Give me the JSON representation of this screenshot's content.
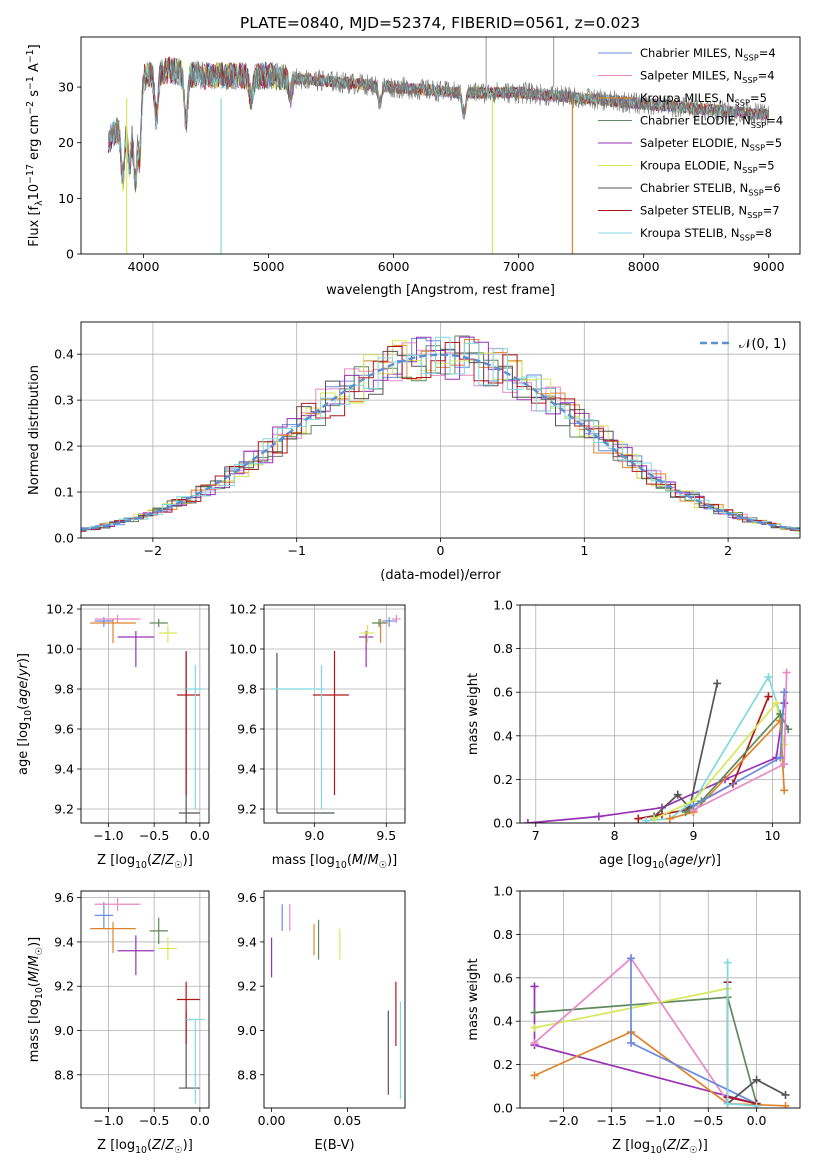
{
  "figure_title": "PLATE=0840, MJD=52374, FIBERID=0561, z=0.023",
  "colors": {
    "Chabrier MILES": "#6a8be0",
    "Salpeter MILES": "#e889c7",
    "Kroupa MILES": "#e0842b",
    "Chabrier ELODIE": "#5f8a5f",
    "Salpeter ELODIE": "#9a32b8",
    "Kroupa ELODIE": "#d6e85a",
    "Chabrier STELIB": "#555555",
    "Salpeter STELIB": "#b01818",
    "Kroupa STELIB": "#7fd9e0"
  },
  "chart_data": [
    {
      "type": "line",
      "xlabel": "wavelength [Angstrom, rest frame]",
      "ylabel": "Flux [f_λ10^-17 erg cm^-2 s^-1 A^-1]",
      "xlim": [
        3500,
        9250
      ],
      "ylim": [
        0,
        39
      ],
      "xticks": [
        4000,
        5000,
        6000,
        7000,
        8000,
        9000
      ],
      "yticks": [
        0,
        10,
        20,
        30
      ],
      "grid": false,
      "legend_position": "top-right",
      "series": [
        {
          "name": "Chabrier MILES, N_SSP=4"
        },
        {
          "name": "Salpeter MILES, N_SSP=4"
        },
        {
          "name": "Kroupa MILES, N_SSP=5"
        },
        {
          "name": "Chabrier ELODIE, N_SSP=4"
        },
        {
          "name": "Salpeter ELODIE, N_SSP=5"
        },
        {
          "name": "Kroupa ELODIE, N_SSP=5"
        },
        {
          "name": "Chabrier STELIB, N_SSP=6"
        },
        {
          "name": "Salpeter STELIB, N_SSP=7"
        },
        {
          "name": "Kroupa STELIB, N_SSP=8"
        }
      ],
      "approx_continuum": {
        "x": [
          3700,
          3900,
          4000,
          4200,
          4500,
          5000,
          5500,
          6000,
          6500,
          7000,
          7500,
          8000,
          8500,
          9000
        ],
        "y": [
          20,
          25,
          32,
          33,
          32,
          32,
          31,
          30,
          29,
          29,
          28,
          27,
          26,
          25
        ]
      }
    },
    {
      "type": "histogram",
      "xlabel": "(data-model)/error",
      "ylabel": "Normed distribution",
      "xlim": [
        -2.5,
        2.5
      ],
      "ylim": [
        0,
        0.47
      ],
      "xticks": [
        -2,
        -1,
        0,
        1,
        2
      ],
      "yticks": [
        0.0,
        0.1,
        0.2,
        0.3,
        0.4
      ],
      "grid": true,
      "legend_position": "top-right",
      "reference_curve": "𝒩(0, 1)"
    },
    {
      "type": "scatter",
      "xlabel": "Z [log10(Z/Z☉)]",
      "ylabel": "age  [log10(age/yr)]",
      "xlim": [
        -1.3,
        0.1
      ],
      "ylim": [
        9.13,
        10.22
      ],
      "xticks": [
        -1.0,
        -0.5,
        0.0
      ],
      "yticks": [
        9.2,
        9.4,
        9.6,
        9.8,
        10.0,
        10.2
      ],
      "grid": true,
      "points": [
        {
          "model": "Chabrier MILES",
          "x": -1.05,
          "y": 10.14
        },
        {
          "model": "Salpeter MILES",
          "x": -0.9,
          "y": 10.15
        },
        {
          "model": "Kroupa MILES",
          "x": -0.95,
          "y": 10.13
        },
        {
          "model": "Chabrier ELODIE",
          "x": -0.45,
          "y": 10.13
        },
        {
          "model": "Salpeter ELODIE",
          "x": -0.7,
          "y": 10.06
        },
        {
          "model": "Kroupa ELODIE",
          "x": -0.35,
          "y": 10.08
        },
        {
          "model": "Chabrier STELIB",
          "x": -0.15,
          "y": 9.18
        },
        {
          "model": "Salpeter STELIB",
          "x": -0.15,
          "y": 9.77
        },
        {
          "model": "Kroupa STELIB",
          "x": -0.05,
          "y": 9.8
        }
      ]
    },
    {
      "type": "scatter",
      "xlabel": "mass [log10(M/M☉)]",
      "xlim": [
        8.65,
        9.63
      ],
      "ylim": [
        9.13,
        10.22
      ],
      "xticks": [
        9.0,
        9.5
      ],
      "yticks": [
        9.2,
        9.4,
        9.6,
        9.8,
        10.0,
        10.2
      ],
      "grid": true,
      "points": [
        {
          "model": "Chabrier MILES",
          "x": 9.52,
          "y": 10.14
        },
        {
          "model": "Salpeter MILES",
          "x": 9.57,
          "y": 10.15
        },
        {
          "model": "Kroupa MILES",
          "x": 9.46,
          "y": 10.13
        },
        {
          "model": "Chabrier ELODIE",
          "x": 9.45,
          "y": 10.13
        },
        {
          "model": "Salpeter ELODIE",
          "x": 9.36,
          "y": 10.06
        },
        {
          "model": "Kroupa ELODIE",
          "x": 9.37,
          "y": 10.08
        },
        {
          "model": "Chabrier STELIB",
          "x": 8.74,
          "y": 9.18
        },
        {
          "model": "Salpeter STELIB",
          "x": 9.14,
          "y": 9.77
        },
        {
          "model": "Kroupa STELIB",
          "x": 9.05,
          "y": 9.8
        }
      ]
    },
    {
      "type": "line",
      "xlabel": "age  [log10(age/yr)]",
      "ylabel": "mass weight",
      "xlim": [
        6.8,
        10.35
      ],
      "ylim": [
        0,
        1
      ],
      "xticks": [
        7,
        8,
        9,
        10
      ],
      "yticks": [
        0.0,
        0.2,
        0.4,
        0.6,
        0.8,
        1.0
      ],
      "grid": true,
      "series": [
        {
          "model": "Salpeter ELODIE",
          "x": [
            6.9,
            7.8,
            8.6,
            9.4,
            10.05,
            10.15
          ],
          "y": [
            0.0,
            0.03,
            0.07,
            0.2,
            0.3,
            0.55
          ]
        },
        {
          "model": "Salpeter STELIB",
          "x": [
            8.3,
            8.6,
            8.9,
            9.5,
            9.95
          ],
          "y": [
            0.02,
            0.04,
            0.06,
            0.18,
            0.58
          ]
        },
        {
          "model": "Chabrier STELIB",
          "x": [
            8.5,
            8.8,
            8.95,
            9.3
          ],
          "y": [
            0.03,
            0.13,
            0.07,
            0.64
          ]
        },
        {
          "model": "Kroupa STELIB",
          "x": [
            8.4,
            8.7,
            9.0,
            9.95,
            10.1
          ],
          "y": [
            0.01,
            0.02,
            0.1,
            0.67,
            0.5
          ]
        },
        {
          "model": "Kroupa ELODIE",
          "x": [
            8.5,
            9.0,
            10.05,
            10.15
          ],
          "y": [
            0.02,
            0.1,
            0.55,
            0.36
          ]
        },
        {
          "model": "Kroupa MILES",
          "x": [
            8.7,
            9.0,
            10.1,
            10.15
          ],
          "y": [
            0.02,
            0.05,
            0.47,
            0.15
          ]
        },
        {
          "model": "Chabrier ELODIE",
          "x": [
            8.9,
            9.1,
            10.1,
            10.2
          ],
          "y": [
            0.05,
            0.1,
            0.5,
            0.43
          ]
        },
        {
          "model": "Salpeter MILES",
          "x": [
            9.0,
            10.15,
            10.18
          ],
          "y": [
            0.06,
            0.27,
            0.69
          ]
        },
        {
          "model": "Chabrier MILES",
          "x": [
            9.0,
            10.1,
            10.15
          ],
          "y": [
            0.08,
            0.3,
            0.6
          ]
        }
      ]
    },
    {
      "type": "scatter",
      "xlabel": "Z [log10(Z/Z☉)]",
      "ylabel": "mass [log10(M/M☉)]",
      "xlim": [
        -1.3,
        0.1
      ],
      "ylim": [
        8.65,
        9.63
      ],
      "xticks": [
        -1.0,
        -0.5,
        0.0
      ],
      "yticks": [
        8.8,
        9.0,
        9.2,
        9.4,
        9.6
      ],
      "grid": true,
      "points": [
        {
          "model": "Chabrier MILES",
          "x": -1.05,
          "y": 9.52
        },
        {
          "model": "Salpeter MILES",
          "x": -0.9,
          "y": 9.57
        },
        {
          "model": "Kroupa MILES",
          "x": -0.95,
          "y": 9.46
        },
        {
          "model": "Chabrier ELODIE",
          "x": -0.45,
          "y": 9.45
        },
        {
          "model": "Salpeter ELODIE",
          "x": -0.7,
          "y": 9.36
        },
        {
          "model": "Kroupa ELODIE",
          "x": -0.35,
          "y": 9.37
        },
        {
          "model": "Chabrier STELIB",
          "x": -0.15,
          "y": 8.74
        },
        {
          "model": "Salpeter STELIB",
          "x": -0.15,
          "y": 9.14
        },
        {
          "model": "Kroupa STELIB",
          "x": -0.05,
          "y": 9.05
        }
      ]
    },
    {
      "type": "scatter",
      "xlabel": "E(B-V)",
      "xlim": [
        -0.005,
        0.088
      ],
      "ylim": [
        8.65,
        9.63
      ],
      "xticks": [
        0.0,
        0.05
      ],
      "yticks": [
        8.8,
        9.0,
        9.2,
        9.4,
        9.6
      ],
      "grid": false,
      "points": [
        {
          "model": "Chabrier MILES",
          "x": 0.007,
          "y": 9.52
        },
        {
          "model": "Salpeter MILES",
          "x": 0.012,
          "y": 9.52
        },
        {
          "model": "Kroupa MILES",
          "x": 0.028,
          "y": 9.41
        },
        {
          "model": "Chabrier ELODIE",
          "x": 0.031,
          "y": 9.41
        },
        {
          "model": "Salpeter ELODIE",
          "x": 0.0,
          "y": 9.33
        },
        {
          "model": "Kroupa ELODIE",
          "x": 0.045,
          "y": 9.39
        },
        {
          "model": "Chabrier STELIB",
          "x": 0.077,
          "y": 8.91
        },
        {
          "model": "Salpeter STELIB",
          "x": 0.082,
          "y": 9.07
        },
        {
          "model": "Kroupa STELIB",
          "x": 0.085,
          "y": 8.91
        }
      ]
    },
    {
      "type": "line",
      "xlabel": "Z [log10(Z/Z☉)]",
      "ylabel": "mass weight",
      "xlim": [
        -2.45,
        0.45
      ],
      "ylim": [
        0,
        1
      ],
      "xticks": [
        -2.0,
        -1.5,
        -1.0,
        -0.5,
        0.0
      ],
      "yticks": [
        0.0,
        0.2,
        0.4,
        0.6,
        0.8,
        1.0
      ],
      "grid": true,
      "series": [
        {
          "model": "Salpeter ELODIE",
          "x": [
            -2.3,
            -2.3,
            0.0
          ],
          "y": [
            0.56,
            0.29,
            0.02
          ]
        },
        {
          "model": "Chabrier ELODIE",
          "x": [
            -2.3,
            -0.3,
            0.0
          ],
          "y": [
            0.44,
            0.51,
            0.02
          ]
        },
        {
          "model": "Kroupa ELODIE",
          "x": [
            -2.3,
            -0.3,
            -0.3
          ],
          "y": [
            0.37,
            0.55,
            0.02
          ]
        },
        {
          "model": "Kroupa MILES",
          "x": [
            -2.3,
            -1.3,
            -0.3,
            0.3
          ],
          "y": [
            0.15,
            0.35,
            0.02,
            0.01
          ]
        },
        {
          "model": "Salpeter MILES",
          "x": [
            -2.3,
            -1.3,
            -0.3
          ],
          "y": [
            0.3,
            0.69,
            0.03
          ]
        },
        {
          "model": "Chabrier MILES",
          "x": [
            -1.3,
            -1.3,
            0.0
          ],
          "y": [
            0.69,
            0.3,
            0.02
          ]
        },
        {
          "model": "Chabrier STELIB",
          "x": [
            -0.3,
            0.0,
            0.3
          ],
          "y": [
            0.02,
            0.13,
            0.06
          ]
        },
        {
          "model": "Salpeter STELIB",
          "x": [
            -0.3,
            -0.3,
            0.0
          ],
          "y": [
            0.58,
            0.05,
            0.02
          ]
        },
        {
          "model": "Kroupa STELIB",
          "x": [
            -0.3,
            -0.3,
            0.0
          ],
          "y": [
            0.67,
            0.02,
            0.01
          ]
        }
      ]
    }
  ]
}
